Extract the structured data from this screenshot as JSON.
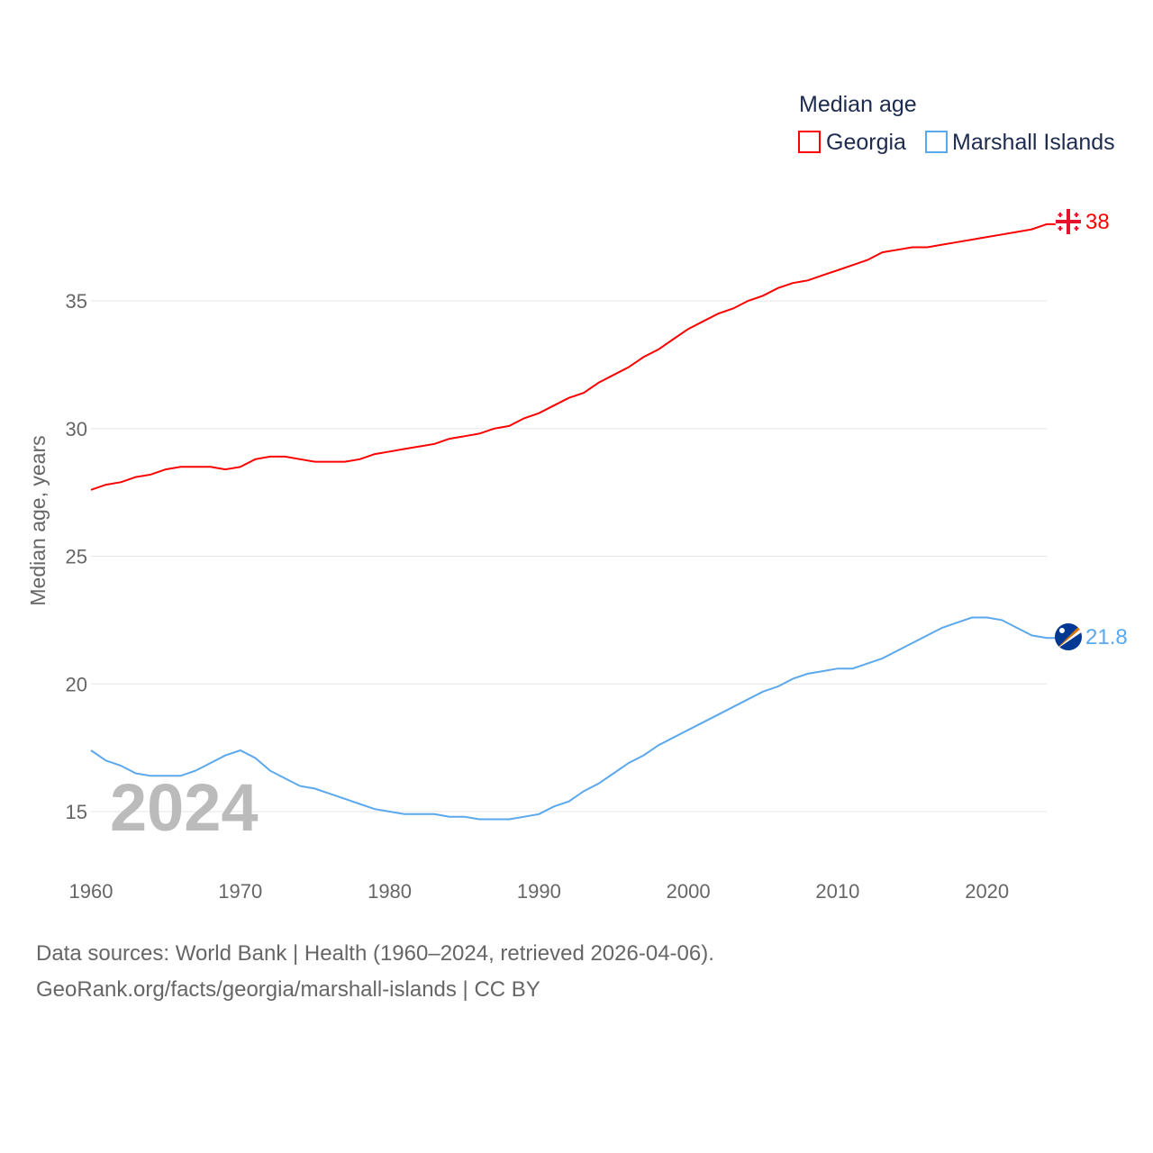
{
  "chart_data": {
    "type": "line",
    "title": "Median age",
    "xlabel": "",
    "ylabel": "Median age, years",
    "xlim": [
      1960,
      2024
    ],
    "ylim": [
      13,
      39
    ],
    "yticks": [
      15,
      20,
      25,
      30,
      35
    ],
    "xticks": [
      1960,
      1970,
      1980,
      1990,
      2000,
      2010,
      2020
    ],
    "grid": true,
    "legend_placement": "top-right",
    "watermark_year": "2024",
    "x": [
      1960,
      1961,
      1962,
      1963,
      1964,
      1965,
      1966,
      1967,
      1968,
      1969,
      1970,
      1971,
      1972,
      1973,
      1974,
      1975,
      1976,
      1977,
      1978,
      1979,
      1980,
      1981,
      1982,
      1983,
      1984,
      1985,
      1986,
      1987,
      1988,
      1989,
      1990,
      1991,
      1992,
      1993,
      1994,
      1995,
      1996,
      1997,
      1998,
      1999,
      2000,
      2001,
      2002,
      2003,
      2004,
      2005,
      2006,
      2007,
      2008,
      2009,
      2010,
      2011,
      2012,
      2013,
      2014,
      2015,
      2016,
      2017,
      2018,
      2019,
      2020,
      2021,
      2022,
      2023,
      2024
    ],
    "series": [
      {
        "name": "Georgia",
        "color": "#ff0000",
        "end_label": "38",
        "values": [
          27.6,
          27.8,
          27.9,
          28.1,
          28.2,
          28.4,
          28.5,
          28.5,
          28.5,
          28.4,
          28.5,
          28.8,
          28.9,
          28.9,
          28.8,
          28.7,
          28.7,
          28.7,
          28.8,
          29.0,
          29.1,
          29.2,
          29.3,
          29.4,
          29.6,
          29.7,
          29.8,
          30.0,
          30.1,
          30.4,
          30.6,
          30.9,
          31.2,
          31.4,
          31.8,
          32.1,
          32.4,
          32.8,
          33.1,
          33.5,
          33.9,
          34.2,
          34.5,
          34.7,
          35.0,
          35.2,
          35.5,
          35.7,
          35.8,
          36.0,
          36.2,
          36.4,
          36.6,
          36.9,
          37.0,
          37.1,
          37.1,
          37.2,
          37.3,
          37.4,
          37.5,
          37.6,
          37.7,
          37.8,
          38.0
        ]
      },
      {
        "name": "Marshall Islands",
        "color": "#5ba8ec",
        "end_label": "21.8",
        "values": [
          17.4,
          17.0,
          16.8,
          16.5,
          16.4,
          16.4,
          16.4,
          16.6,
          16.9,
          17.2,
          17.4,
          17.1,
          16.6,
          16.3,
          16.0,
          15.9,
          15.7,
          15.5,
          15.3,
          15.1,
          15.0,
          14.9,
          14.9,
          14.9,
          14.8,
          14.8,
          14.7,
          14.7,
          14.7,
          14.8,
          14.9,
          15.2,
          15.4,
          15.8,
          16.1,
          16.5,
          16.9,
          17.2,
          17.6,
          17.9,
          18.2,
          18.5,
          18.8,
          19.1,
          19.4,
          19.7,
          19.9,
          20.2,
          20.4,
          20.5,
          20.6,
          20.6,
          20.8,
          21.0,
          21.3,
          21.6,
          21.9,
          22.2,
          22.4,
          22.6,
          22.6,
          22.5,
          22.2,
          21.9,
          21.8
        ]
      }
    ]
  },
  "footer": {
    "line1": "Data sources: World Bank | Health (1960–2024, retrieved 2026-04-06).",
    "line2": "GeoRank.org/facts/georgia/marshall-islands | CC BY"
  }
}
